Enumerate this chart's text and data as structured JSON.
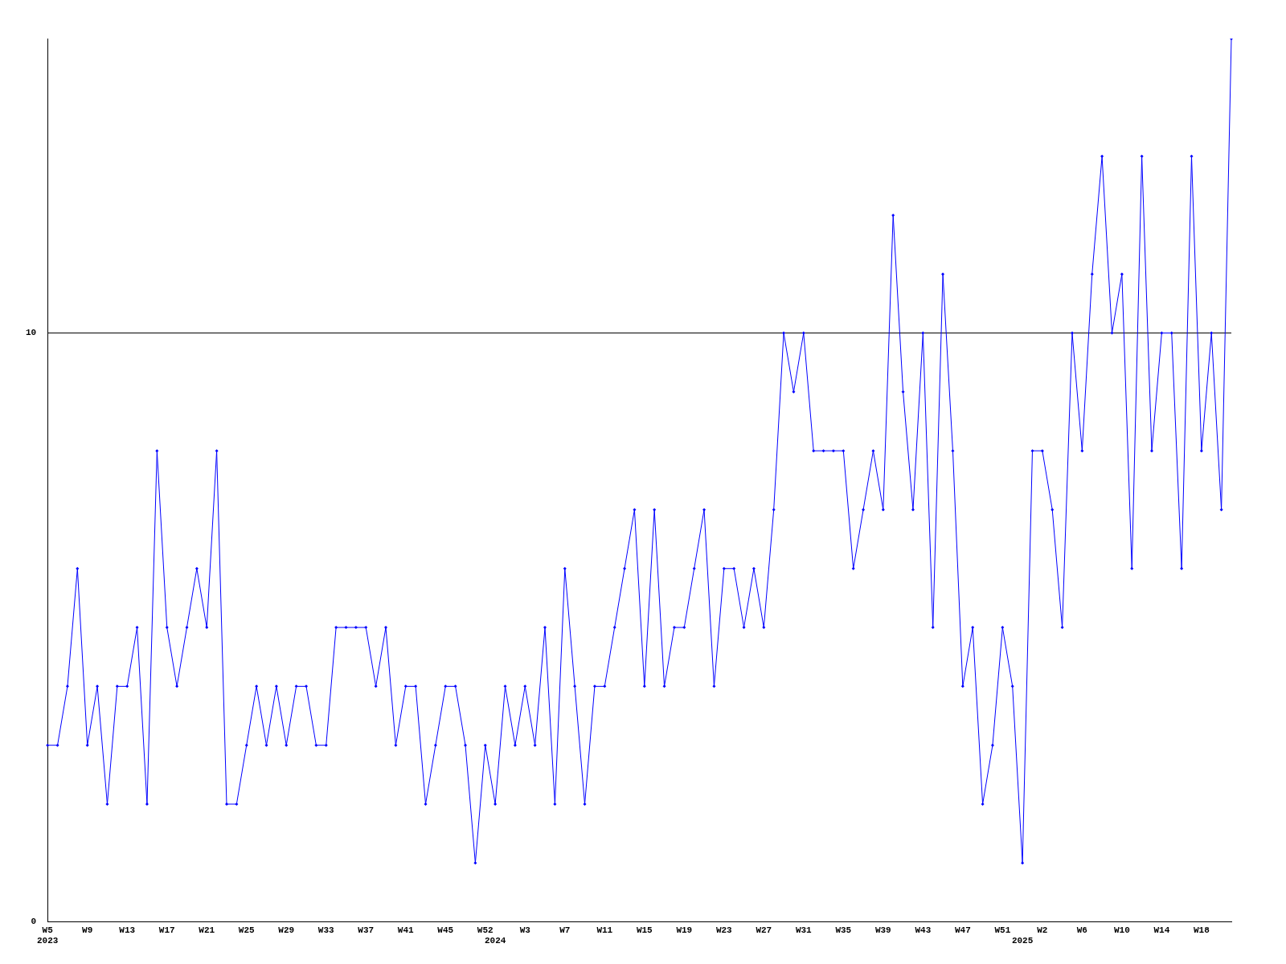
{
  "chart_data": {
    "type": "line",
    "categories": [
      "W5\n2023",
      null,
      null,
      null,
      "W9",
      null,
      null,
      null,
      "W13",
      null,
      null,
      null,
      "W17",
      null,
      null,
      null,
      "W21",
      null,
      null,
      null,
      "W25",
      null,
      null,
      null,
      "W29",
      null,
      null,
      null,
      "W33",
      null,
      null,
      null,
      "W37",
      null,
      null,
      null,
      "W41",
      null,
      null,
      null,
      "W45",
      null,
      null,
      null,
      "W52",
      "\n2024",
      null,
      null,
      "W3",
      null,
      null,
      null,
      "W7",
      null,
      null,
      null,
      "W11",
      null,
      null,
      null,
      "W15",
      null,
      null,
      null,
      "W19",
      null,
      null,
      null,
      "W23",
      null,
      null,
      null,
      "W27",
      null,
      null,
      null,
      "W31",
      null,
      null,
      null,
      "W35",
      null,
      null,
      null,
      "W39",
      null,
      null,
      null,
      "W43",
      null,
      null,
      null,
      "W47",
      null,
      null,
      null,
      "W51",
      null,
      "\n2025",
      null,
      "W2",
      null,
      null,
      null,
      "W6",
      null,
      null,
      null,
      "W10",
      null,
      null,
      null,
      "W14",
      null,
      null,
      null,
      "W18",
      null,
      null,
      null
    ],
    "series": [
      {
        "color": "#0000ff",
        "values": [
          3,
          3,
          4,
          6,
          3,
          4,
          2,
          4,
          4,
          5,
          2,
          8,
          5,
          4,
          5,
          6,
          5,
          8,
          2,
          2,
          3,
          4,
          3,
          4,
          3,
          4,
          4,
          3,
          3,
          5,
          5,
          5,
          5,
          4,
          5,
          3,
          4,
          4,
          2,
          3,
          4,
          4,
          3,
          1,
          3,
          2,
          4,
          3,
          4,
          3,
          5,
          2,
          6,
          4,
          2,
          4,
          4,
          5,
          6,
          7,
          4,
          7,
          4,
          5,
          5,
          6,
          7,
          4,
          6,
          6,
          5,
          6,
          5,
          7,
          10,
          9,
          10,
          8,
          8,
          8,
          8,
          6,
          7,
          8,
          7,
          12,
          9,
          7,
          10,
          5,
          11,
          8,
          4,
          5,
          2,
          3,
          5,
          4,
          1,
          8,
          8,
          7,
          5,
          10,
          8,
          11,
          13,
          10,
          11,
          6,
          13,
          8,
          10,
          10,
          6,
          13,
          8,
          10,
          7,
          15
        ]
      }
    ],
    "ylim": [
      0,
      15
    ],
    "yticks": [
      0,
      10
    ],
    "grid": "y",
    "marker": "diamond",
    "line_style": "solid",
    "legend": false
  }
}
